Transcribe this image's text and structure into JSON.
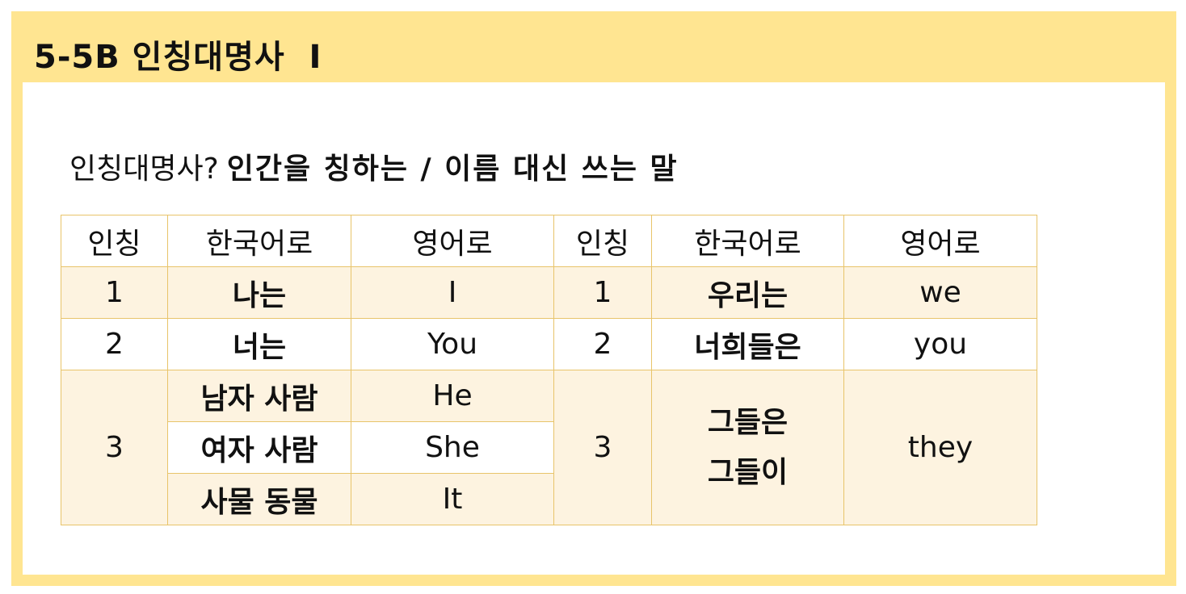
{
  "title": "5-5B 인칭대명사  I",
  "intro": {
    "question": "인칭대명사?",
    "answer": "인간을 칭하는 / 이름 대신 쓰는 말"
  },
  "table": {
    "headers": [
      "인칭",
      "한국어로",
      "영어로",
      "인칭",
      "한국어로",
      "영어로"
    ],
    "row1": {
      "person": "1",
      "ko_singular": "나는",
      "en_singular": "I",
      "person_plural": "1",
      "ko_plural": "우리는",
      "en_plural": "we"
    },
    "row2": {
      "person": "2",
      "ko_singular": "너는",
      "en_singular": "You",
      "person_plural": "2",
      "ko_plural": "너희들은",
      "en_plural": "you"
    },
    "row3": {
      "person": "3",
      "singular": [
        {
          "ko": "남자 사람",
          "en": "He"
        },
        {
          "ko": "여자 사람",
          "en": "She"
        },
        {
          "ko": "사물 동물",
          "en": "It"
        }
      ],
      "person_plural": "3",
      "ko_plural_lines": [
        "그들은",
        "그들이"
      ],
      "en_plural": "they"
    }
  },
  "colors": {
    "frame": "#ffe591",
    "row_tint": "#fdf3e0",
    "border": "#e8c46a"
  }
}
